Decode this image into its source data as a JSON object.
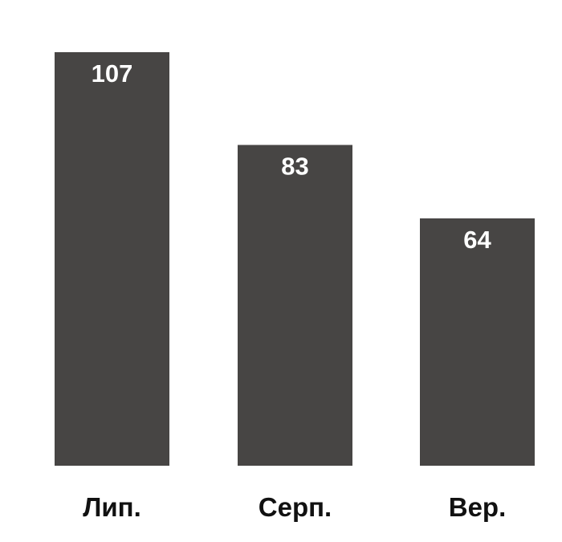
{
  "chart_data": {
    "type": "bar",
    "categories": [
      "Лип.",
      "Серп.",
      "Вер."
    ],
    "values": [
      107,
      83,
      64
    ],
    "data_labels": [
      "107",
      "83",
      "64"
    ],
    "title": "",
    "xlabel": "",
    "ylabel": "",
    "ylim": [
      0,
      107
    ],
    "grid": false,
    "legend": "none",
    "colors": {
      "bar": "#474544",
      "data_label": "#ffffff",
      "tick_label": "#111111",
      "background": "#ffffff"
    }
  }
}
